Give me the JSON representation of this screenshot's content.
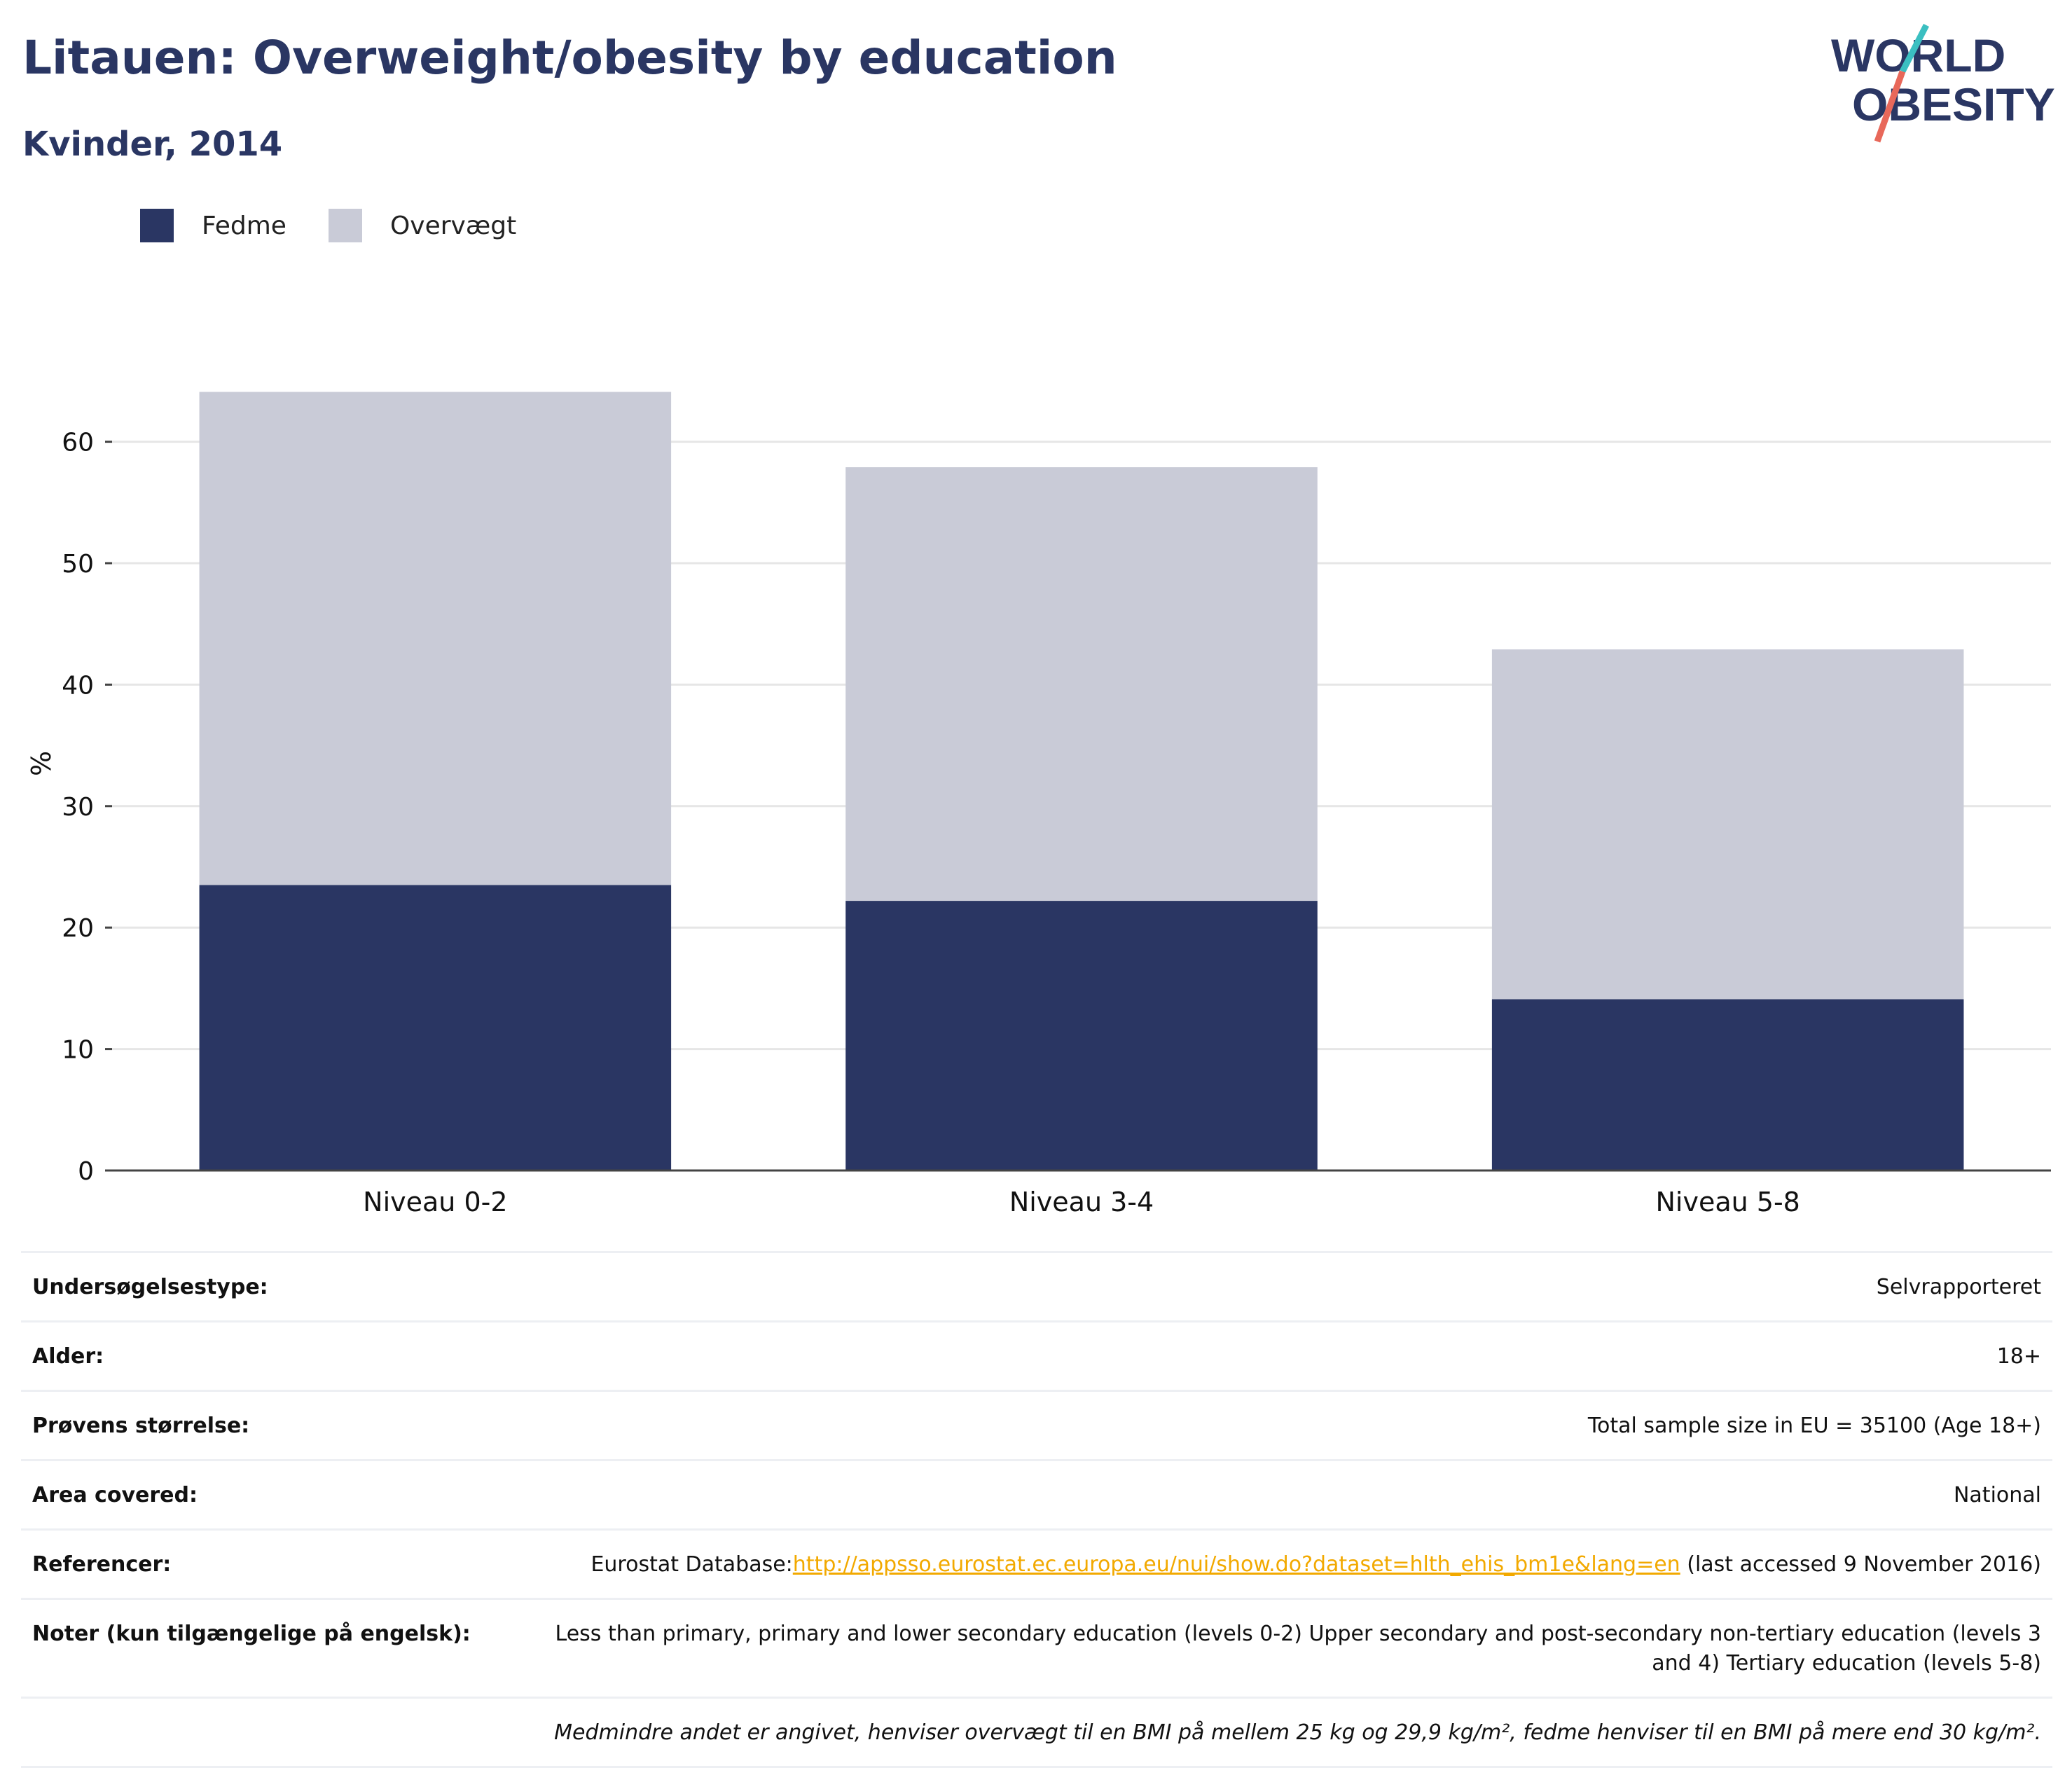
{
  "header": {
    "title": "Litauen: Overweight/obesity by education",
    "subtitle": "Kvinder, 2014"
  },
  "logo": {
    "line1": "WORLD",
    "line2": "OBESITY",
    "colors": {
      "text": "#2a3663",
      "slash_top": "#3bbfc1",
      "slash_bottom": "#e8685a"
    }
  },
  "legend": {
    "items": [
      {
        "label": "Fedme",
        "color": "#2a3663"
      },
      {
        "label": "Overvægt",
        "color": "#c9cbd7"
      }
    ]
  },
  "chart_data": {
    "type": "bar",
    "stacked": true,
    "categories": [
      "Niveau 0-2",
      "Niveau 3-4",
      "Niveau 5-8"
    ],
    "series": [
      {
        "name": "Fedme",
        "values": [
          23.5,
          22.2,
          14.1
        ],
        "color": "#2a3663"
      },
      {
        "name": "Overvægt",
        "values": [
          40.6,
          35.7,
          28.8
        ],
        "color": "#c9cbd7"
      }
    ],
    "ylabel": "%",
    "xlabel": "",
    "ylim": [
      0,
      70
    ],
    "yticks": [
      0,
      10,
      20,
      30,
      40,
      50,
      60
    ],
    "grid": true,
    "legend_position": "top-left"
  },
  "info": {
    "rows": [
      {
        "label": "Undersøgelsestype:",
        "value": "Selvrapporteret"
      },
      {
        "label": "Alder:",
        "value": "18+"
      },
      {
        "label": "Prøvens størrelse:",
        "value": "Total sample size in EU = 35100 (Age 18+)"
      },
      {
        "label": "Area covered:",
        "value": "National"
      }
    ],
    "references": {
      "label": "Referencer:",
      "prefix": "Eurostat Database:",
      "link": "http://appsso.eurostat.ec.europa.eu/nui/show.do?dataset=hlth_ehis_bm1e&lang=en",
      "suffix": " (last accessed 9 November 2016)"
    },
    "notes": {
      "label": "Noter (kun tilgængelige på engelsk):",
      "value": "Less than primary, primary and lower secondary education (levels 0-2) Upper secondary and post-secondary non-tertiary education (levels 3 and 4) Tertiary education (levels 5-8)"
    },
    "footnote": "Medmindre andet er angivet, henviser overvægt til en BMI på mellem 25 kg og 29,9 kg/m², fedme henviser til en BMI på mere end 30 kg/m²."
  }
}
